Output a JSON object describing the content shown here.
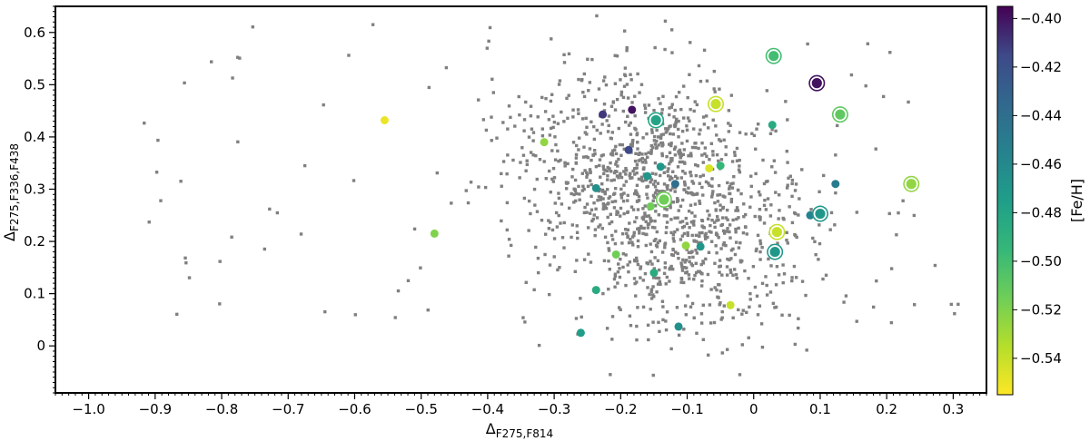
{
  "chart_data": {
    "type": "scatter",
    "xlabel": "Δ",
    "xlabel_sub": "F275,F814",
    "ylabel": "Δ",
    "ylabel_sub": "F275,F336,F438",
    "xlim": [
      -1.05,
      0.35
    ],
    "ylim": [
      -0.09,
      0.65
    ],
    "x_ticks": [
      -1.0,
      -0.9,
      -0.8,
      -0.7,
      -0.6,
      -0.5,
      -0.4,
      -0.3,
      -0.2,
      -0.1,
      0.0,
      0.1,
      0.2,
      0.3
    ],
    "x_tick_labels": [
      "−1.0",
      "−0.9",
      "−0.8",
      "−0.7",
      "−0.6",
      "−0.5",
      "−0.4",
      "−0.3",
      "−0.2",
      "−0.1",
      "0",
      "0.1",
      "0.2",
      "0.3"
    ],
    "y_ticks": [
      0.0,
      0.1,
      0.2,
      0.3,
      0.4,
      0.5,
      0.6
    ],
    "y_tick_labels": [
      "0",
      "0.1",
      "0.2",
      "0.3",
      "0.4",
      "0.5",
      "0.6"
    ],
    "grid": false,
    "background_cloud": {
      "color": "#808080",
      "description_count": 1400,
      "center": [
        -0.14,
        0.28
      ],
      "spread": [
        0.085,
        0.115
      ],
      "x_range": [
        -0.92,
        0.31
      ],
      "y_range": [
        -0.06,
        0.64
      ]
    },
    "colorbar": {
      "label": "[Fe/H]",
      "min": -0.555,
      "max": -0.395,
      "ticks": [
        -0.4,
        -0.42,
        -0.44,
        -0.46,
        -0.48,
        -0.5,
        -0.52,
        -0.54
      ],
      "tick_labels": [
        "−0.40",
        "−0.42",
        "−0.44",
        "−0.46",
        "−0.48",
        "−0.50",
        "−0.52",
        "−0.54"
      ],
      "colormap": "viridis"
    },
    "series": [
      {
        "marker": "filled-circle",
        "points": [
          {
            "x": -0.555,
            "y": 0.432,
            "feh": -0.55
          },
          {
            "x": -0.48,
            "y": 0.215,
            "feh": -0.52
          },
          {
            "x": -0.315,
            "y": 0.39,
            "feh": -0.525
          },
          {
            "x": -0.26,
            "y": 0.025,
            "feh": -0.475
          },
          {
            "x": -0.237,
            "y": 0.302,
            "feh": -0.465
          },
          {
            "x": -0.237,
            "y": 0.107,
            "feh": -0.485
          },
          {
            "x": -0.227,
            "y": 0.443,
            "feh": -0.41
          },
          {
            "x": -0.207,
            "y": 0.175,
            "feh": -0.515
          },
          {
            "x": -0.188,
            "y": 0.375,
            "feh": -0.415
          },
          {
            "x": -0.183,
            "y": 0.452,
            "feh": -0.4
          },
          {
            "x": -0.16,
            "y": 0.325,
            "feh": -0.47
          },
          {
            "x": -0.155,
            "y": 0.267,
            "feh": -0.515
          },
          {
            "x": -0.15,
            "y": 0.14,
            "feh": -0.485
          },
          {
            "x": -0.14,
            "y": 0.343,
            "feh": -0.47
          },
          {
            "x": -0.118,
            "y": 0.31,
            "feh": -0.44
          },
          {
            "x": -0.113,
            "y": 0.037,
            "feh": -0.465
          },
          {
            "x": -0.102,
            "y": 0.192,
            "feh": -0.525
          },
          {
            "x": -0.08,
            "y": 0.19,
            "feh": -0.47
          },
          {
            "x": -0.067,
            "y": 0.34,
            "feh": -0.545
          },
          {
            "x": -0.05,
            "y": 0.345,
            "feh": -0.495
          },
          {
            "x": -0.035,
            "y": 0.078,
            "feh": -0.54
          },
          {
            "x": 0.028,
            "y": 0.423,
            "feh": -0.485
          },
          {
            "x": 0.085,
            "y": 0.25,
            "feh": -0.455
          },
          {
            "x": 0.123,
            "y": 0.31,
            "feh": -0.45
          }
        ]
      },
      {
        "marker": "ringed-circle",
        "points": [
          {
            "x": 0.03,
            "y": 0.555,
            "feh": -0.5
          },
          {
            "x": 0.095,
            "y": 0.503,
            "feh": -0.4
          },
          {
            "x": -0.057,
            "y": 0.463,
            "feh": -0.54
          },
          {
            "x": 0.13,
            "y": 0.443,
            "feh": -0.51
          },
          {
            "x": -0.147,
            "y": 0.432,
            "feh": -0.48
          },
          {
            "x": 0.237,
            "y": 0.31,
            "feh": -0.525
          },
          {
            "x": -0.135,
            "y": 0.28,
            "feh": -0.515
          },
          {
            "x": 0.1,
            "y": 0.253,
            "feh": -0.47
          },
          {
            "x": 0.035,
            "y": 0.218,
            "feh": -0.54
          },
          {
            "x": 0.032,
            "y": 0.18,
            "feh": -0.47
          }
        ]
      }
    ]
  }
}
